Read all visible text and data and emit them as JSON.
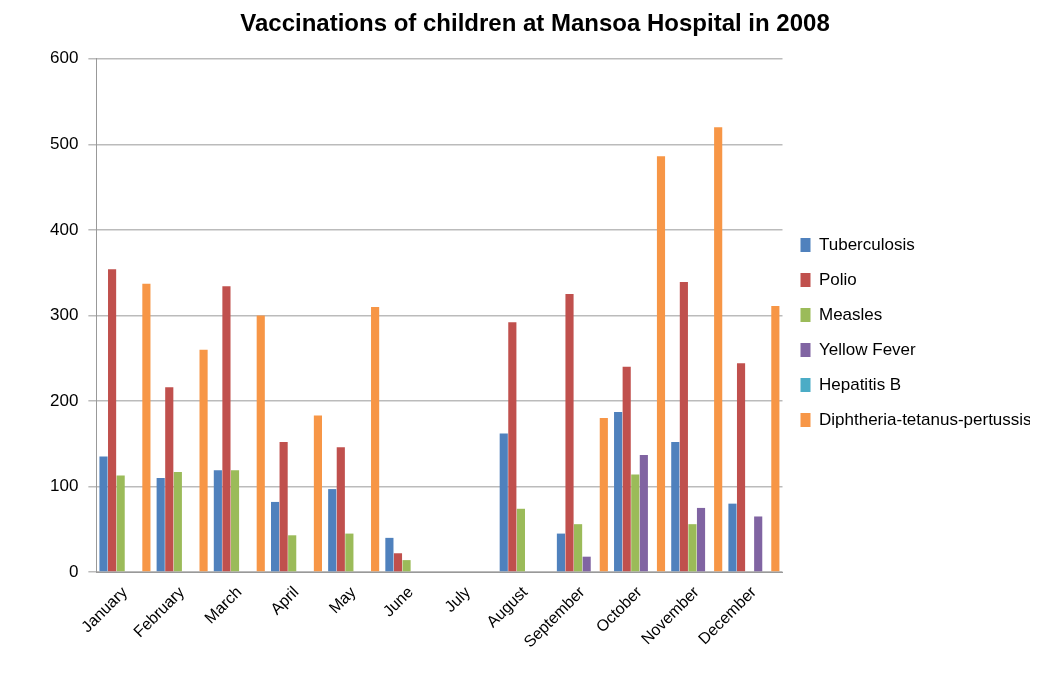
{
  "chart_data": {
    "type": "bar",
    "title": "Vaccinations of children at Mansoa Hospital in 2008",
    "categories": [
      "January",
      "February",
      "March",
      "April",
      "May",
      "June",
      "July",
      "August",
      "September",
      "October",
      "November",
      "December"
    ],
    "series": [
      {
        "name": "Tuberculosis",
        "color": "#4f81bd",
        "values": [
          135,
          110,
          119,
          82,
          97,
          40,
          0,
          162,
          45,
          187,
          152,
          80
        ]
      },
      {
        "name": "Polio",
        "color": "#c0504d",
        "values": [
          354,
          216,
          334,
          152,
          146,
          22,
          0,
          292,
          325,
          240,
          339,
          244
        ]
      },
      {
        "name": "Measles",
        "color": "#9bbb59",
        "values": [
          113,
          117,
          119,
          43,
          45,
          14,
          0,
          74,
          56,
          114,
          56,
          0
        ]
      },
      {
        "name": "Yellow Fever",
        "color": "#8064a2",
        "values": [
          0,
          0,
          0,
          0,
          0,
          0,
          0,
          0,
          18,
          137,
          75,
          65
        ]
      },
      {
        "name": "Hepatitis B",
        "color": "#4bacc6",
        "values": [
          0,
          0,
          0,
          0,
          0,
          0,
          0,
          0,
          0,
          0,
          0,
          0
        ]
      },
      {
        "name": "Diphtheria-tetanus-pertussis",
        "color": "#f79646",
        "values": [
          337,
          260,
          300,
          183,
          310,
          0,
          0,
          0,
          180,
          486,
          520,
          311
        ]
      }
    ],
    "ylim": [
      0,
      600
    ],
    "yticks": [
      0,
      100,
      200,
      300,
      400,
      500,
      600
    ],
    "grid": "y",
    "legend": "right"
  }
}
